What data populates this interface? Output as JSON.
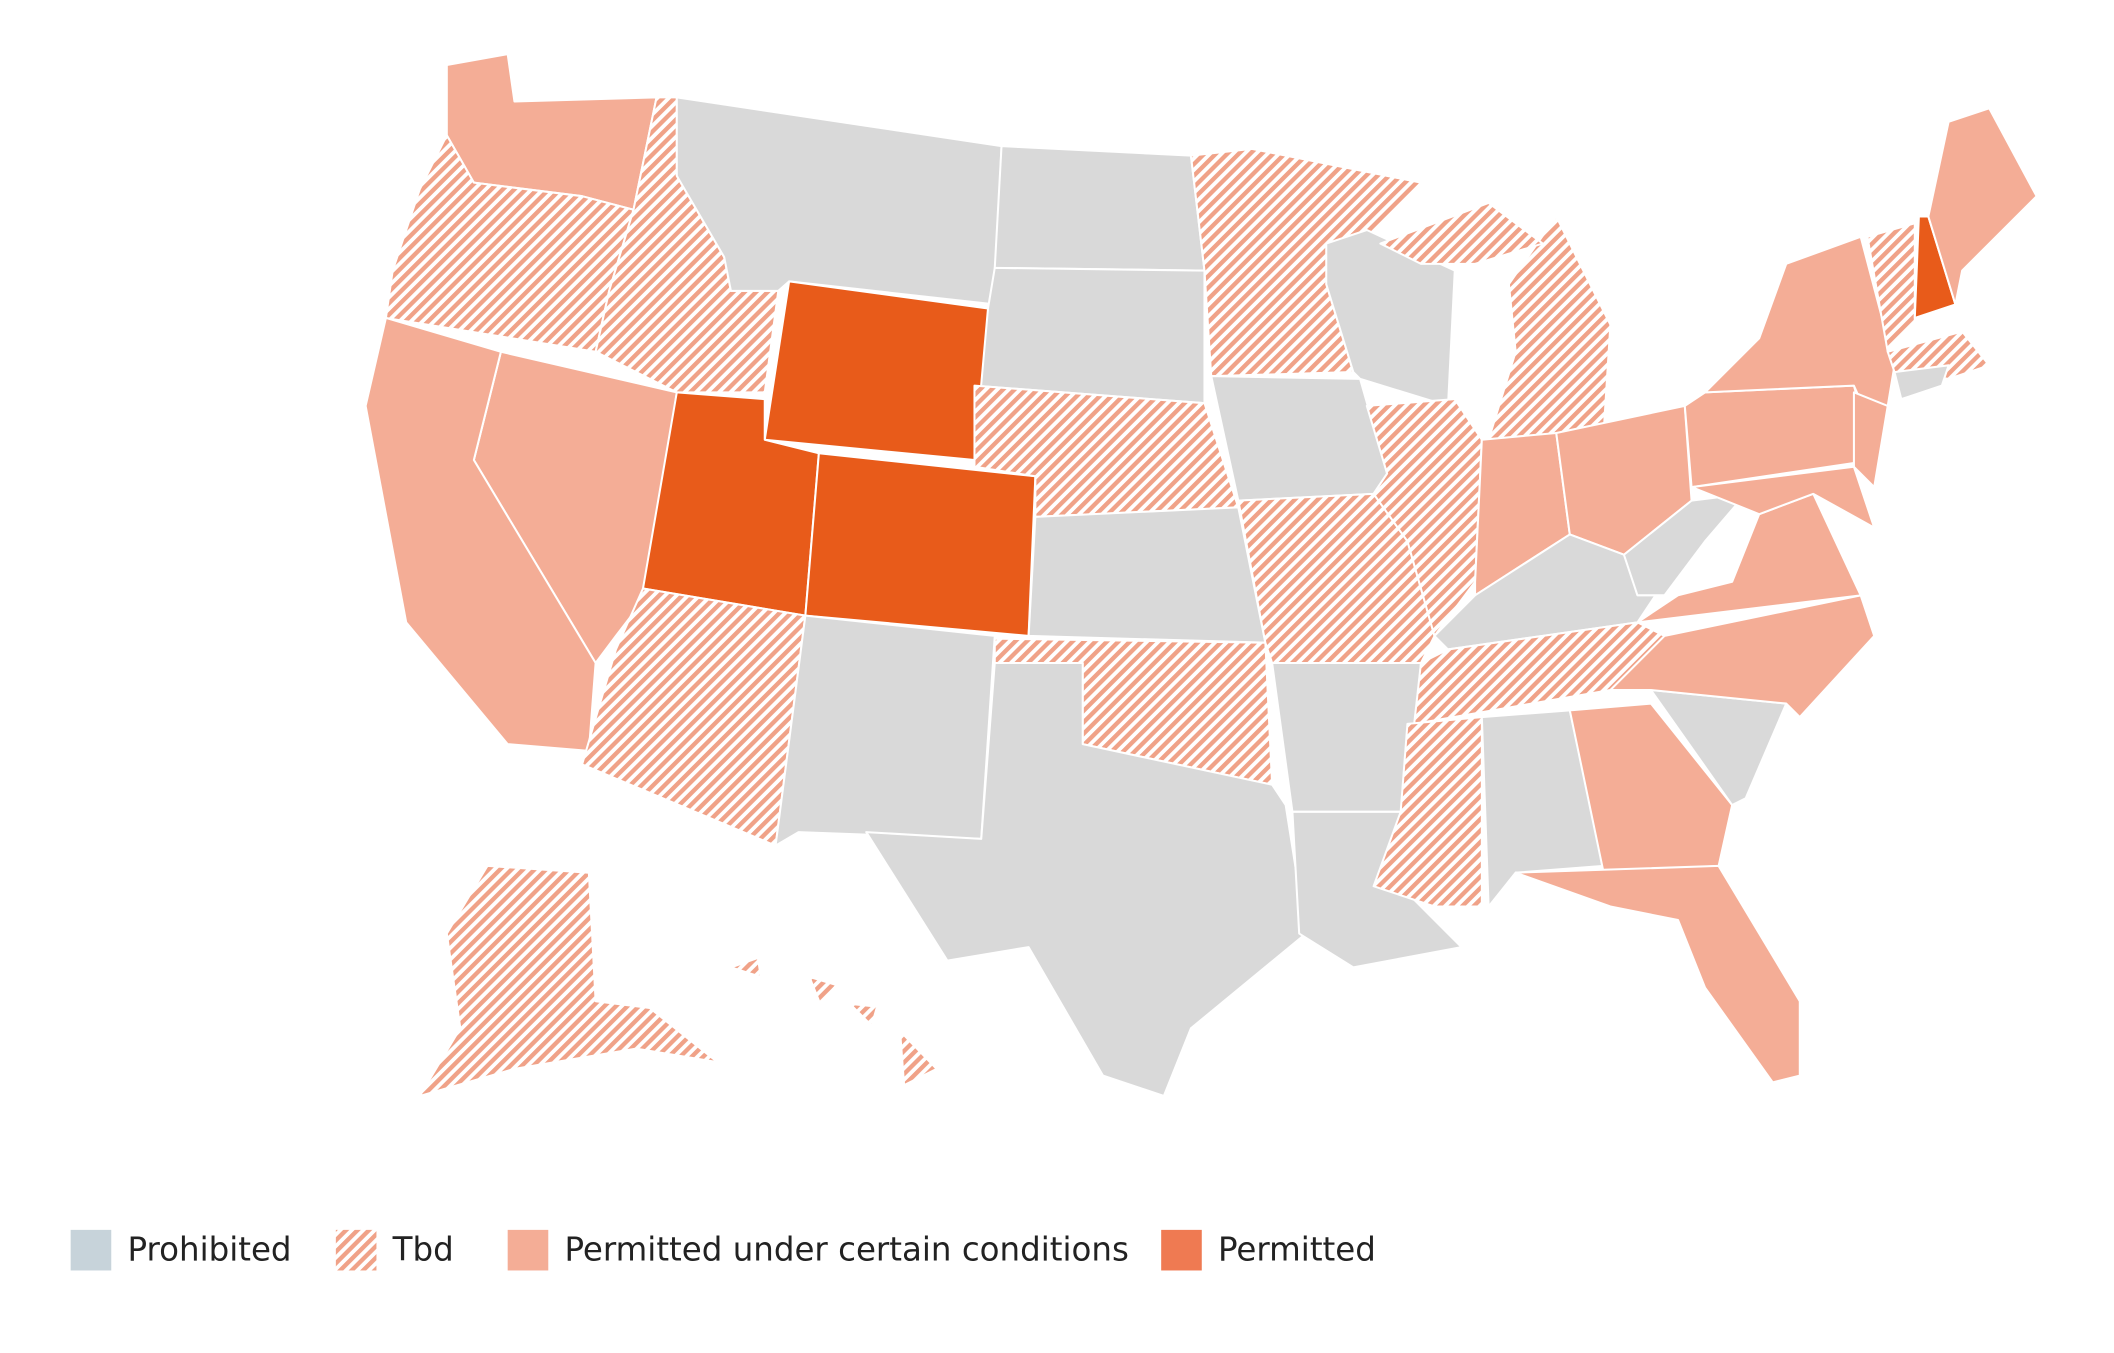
{
  "legend": [
    {
      "label": "Prohibited",
      "color": "#c7d3da",
      "map_color": "#d9d9d9",
      "style": "solid"
    },
    {
      "label": "Tbd",
      "color": "#f0a288",
      "style": "hatched"
    },
    {
      "label": "Permitted under certain conditions",
      "color": "#f4ad96",
      "style": "solid"
    },
    {
      "label": "Permitted",
      "color": "#ef7a52",
      "map_color": "#e85b1a",
      "style": "solid"
    }
  ]
}
